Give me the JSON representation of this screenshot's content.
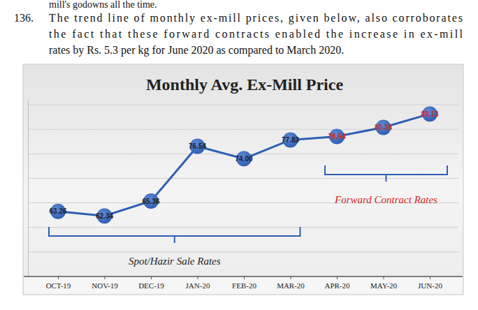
{
  "document": {
    "previous_line": "mill's godowns all the time.",
    "paragraph": {
      "number": "136.",
      "lines": [
        "The trend line of monthly ex-mill prices, given below, also corroborates",
        "the fact that these forward contracts enabled the increase in ex-mill",
        "rates by Rs. 5.3 per kg for June 2020 as compared to March 2020."
      ]
    }
  },
  "chart_data": {
    "type": "line",
    "title": "Monthly Avg. Ex-Mill Price",
    "categories": [
      "OCT-19",
      "NOV-19",
      "DEC-19",
      "JAN-20",
      "FEB-20",
      "MAR-20",
      "APR-20",
      "MAY-20",
      "JUN-20"
    ],
    "values": [
      63.26,
      62.34,
      65.36,
      76.54,
      74.0,
      77.83,
      78.54,
      80.38,
      83.13
    ],
    "value_labels": [
      "63.26",
      "62.34",
      "65.36",
      "76.54",
      "74.00",
      "77.83",
      "78.54",
      "80.38",
      "83.13"
    ],
    "color": "#2f5fb3",
    "marker": "circle",
    "data_labels": true,
    "ylim": [
      50,
      86
    ],
    "yticks": [
      55,
      60,
      65,
      70,
      75,
      80,
      85
    ],
    "grid": true,
    "tick_labels": "x",
    "annotations": [
      {
        "text": "Spot/Hazir Sale Rates",
        "from": "OCT-19",
        "to": "MAR-20",
        "color": "#1f1f1f"
      },
      {
        "text": "Forward Contract Rates",
        "from": "APR-20",
        "to": "JUN-20",
        "color": "#d9261c"
      }
    ]
  }
}
